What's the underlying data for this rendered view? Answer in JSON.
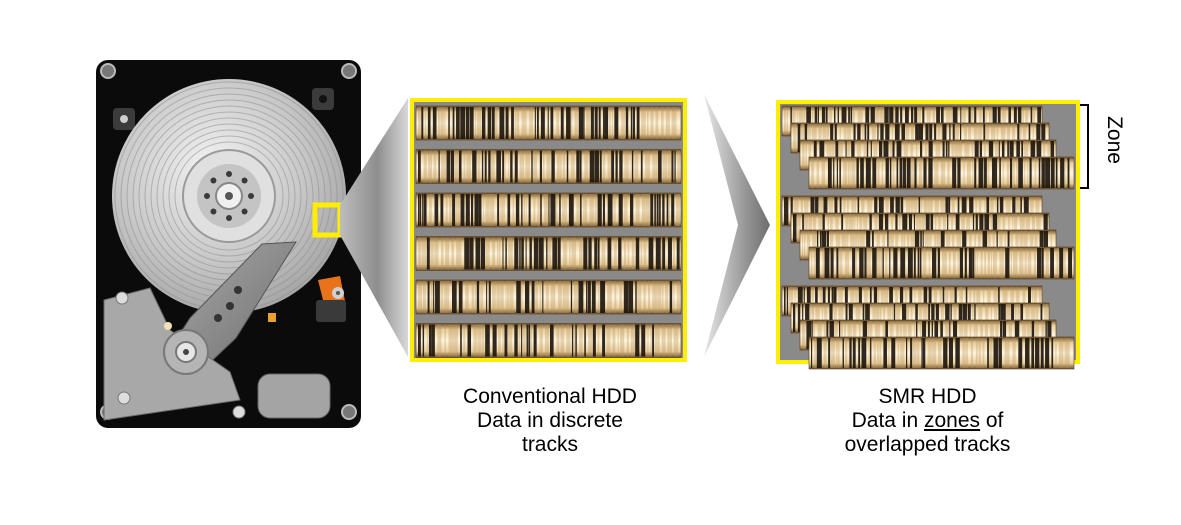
{
  "conventional": {
    "title": "Conventional HDD",
    "line2": "Data in discrete",
    "line3": "tracks"
  },
  "smr": {
    "title": "SMR HDD",
    "line2_pre": "Data in ",
    "line2_underlined": "zones",
    "line2_post": " of",
    "line3": "overlapped tracks"
  },
  "zone_label": "Zone",
  "colors": {
    "highlight": "#ffee00",
    "drive_body": "#0b0b0b",
    "platter": "#c8c8c8",
    "actuator": "#8f8f8f",
    "orange_part": "#e8731a",
    "track_gap": "#8a8a8a",
    "track_light": "#f3e4c3",
    "track_dark": "#1a120a"
  },
  "tracks": {
    "conventional_track_count": 6,
    "smr_zone_count": 3,
    "smr_tracks_per_zone": 4
  }
}
